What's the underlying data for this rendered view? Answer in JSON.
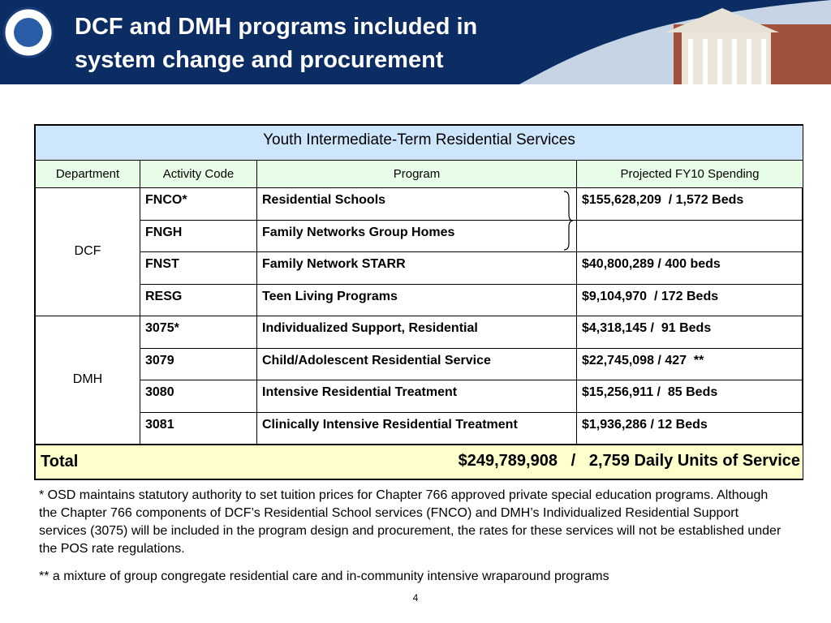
{
  "header": {
    "title_lines": [
      "DCF and DMH programs included in",
      "system change and procurement"
    ]
  },
  "table": {
    "caption": "Youth Intermediate-Term Residential Services",
    "headers": [
      "Department",
      "Activity Code",
      "Program",
      "Projected FY10 Spending"
    ],
    "groups": [
      {
        "department": "DCF",
        "rows": [
          {
            "code": "FNCO*",
            "program": "Residential Schools",
            "spending": "$155,628,209  / 1,572 Beds"
          },
          {
            "code": "FNGH",
            "program": "Family Networks Group Homes"
          },
          {
            "code": "FNST",
            "program": "Family Network STARR",
            "spending": "$40,800,289 / 400 beds"
          },
          {
            "code": "RESG",
            "program": "Teen Living Programs",
            "spending": "$9,104,970  / 172 Beds"
          }
        ]
      },
      {
        "department": "DMH",
        "rows": [
          {
            "code": "3075*",
            "program": "Individualized Support, Residential",
            "spending": "$4,318,145 /  91 Beds"
          },
          {
            "code": "3079",
            "program": "Child/Adolescent Residential Service",
            "spending": "$22,745,098 / 427  **"
          },
          {
            "code": "3080",
            "program": "Intensive Residential Treatment",
            "spending": "$15,256,911 /  85 Beds"
          },
          {
            "code": "3081",
            "program": "Clinically Intensive Residential Treatment",
            "spending": "$1,936,286 / 12 Beds"
          }
        ]
      }
    ],
    "total": {
      "label": "Total",
      "value": "$249,789,908   /   2,759 Daily Units of Service"
    }
  },
  "footnotes": [
    "* OSD maintains statutory authority to set tuition prices for Chapter 766 approved private special education programs.  Although the Chapter 766 components of DCF’s Residential School services (FNCO) and DMH’s Individualized Residential Support services (3075) will be included in the program design and procurement, the rates for these services will not be established under the POS rate regulations.",
    "** a mixture of group congregate residential care and in-community intensive wraparound programs"
  ],
  "page_number": "4"
}
